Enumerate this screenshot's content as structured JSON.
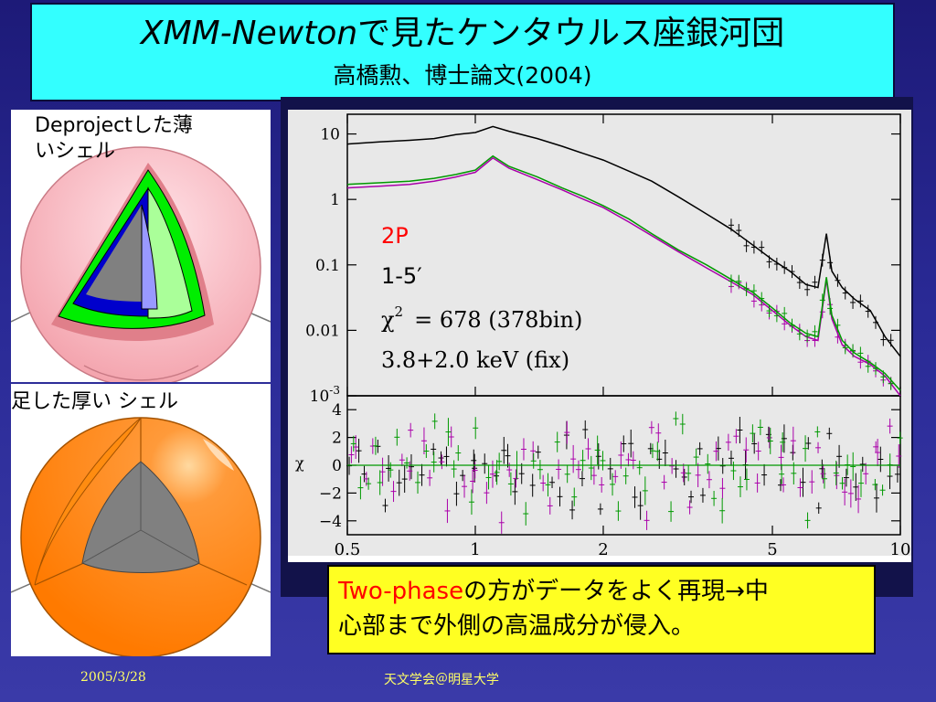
{
  "title": {
    "main_italic": "XMM-Newton",
    "main_rest": "で見たケンタウルス座銀河団",
    "subtitle": "高橋勲、博士論文(2004)"
  },
  "left_panels": {
    "thin_shell_label_line1": "Deprojectした薄",
    "thin_shell_label_line2": "いシェル",
    "thick_shell_label": "足した厚い シェル"
  },
  "plot": {
    "model_label": "2P",
    "region_label": "1-5′",
    "chi2_symbol": "χ",
    "chi2_exp": "2",
    "chi2_text": "= 678 (378bin)",
    "temps_label": "3.8+2.0 keV (fix)",
    "colors": {
      "data1": "#000000",
      "data2": "#aa00aa",
      "data3": "#009900",
      "model_label": "#ff0000"
    }
  },
  "chart_data": {
    "type": "line",
    "xscale": "log",
    "yscale_top": "log",
    "xlim": [
      0.5,
      10
    ],
    "ylim_top": [
      0.001,
      20
    ],
    "ylim_bottom": [
      -5,
      5
    ],
    "x_ticks": [
      "0.5",
      "1",
      "2",
      "5",
      "10"
    ],
    "y_ticks_top": [
      "10",
      "1",
      "0.1",
      "0.01",
      "10^-3"
    ],
    "y_ticks_bottom": [
      "4",
      "2",
      "0",
      "−2",
      "−4"
    ],
    "ylabel_bottom": "χ",
    "series": [
      {
        "color": "#000000",
        "x": [
          0.5,
          0.6,
          0.7,
          0.8,
          0.9,
          1.0,
          1.1,
          1.2,
          1.4,
          1.6,
          1.8,
          2.0,
          2.3,
          2.6,
          3.0,
          3.5,
          4.0,
          4.5,
          5.0,
          5.5,
          6.0,
          6.4,
          6.7,
          6.9,
          7.3,
          7.8,
          8.5,
          9.2,
          10.0
        ],
        "y": [
          7.0,
          7.6,
          8.0,
          8.5,
          9.8,
          10.5,
          13.0,
          11.0,
          8.5,
          6.5,
          5.0,
          4.0,
          2.7,
          1.9,
          1.1,
          0.6,
          0.35,
          0.2,
          0.12,
          0.08,
          0.05,
          0.045,
          0.3,
          0.08,
          0.045,
          0.03,
          0.02,
          0.008,
          0.004
        ]
      },
      {
        "color": "#aa00aa",
        "x": [
          0.5,
          0.6,
          0.7,
          0.8,
          0.9,
          1.0,
          1.1,
          1.2,
          1.4,
          1.6,
          1.8,
          2.0,
          2.3,
          2.6,
          3.0,
          3.5,
          4.0,
          4.5,
          5.0,
          5.5,
          6.0,
          6.4,
          6.7,
          6.9,
          7.3,
          7.8,
          8.5,
          9.2,
          10.0
        ],
        "y": [
          1.5,
          1.6,
          1.7,
          1.9,
          2.2,
          2.6,
          4.3,
          3.0,
          2.0,
          1.4,
          1.0,
          0.75,
          0.45,
          0.28,
          0.16,
          0.09,
          0.055,
          0.035,
          0.02,
          0.012,
          0.008,
          0.007,
          0.06,
          0.015,
          0.006,
          0.004,
          0.003,
          0.002,
          0.001
        ]
      },
      {
        "color": "#009900",
        "x": [
          0.5,
          0.6,
          0.7,
          0.8,
          0.9,
          1.0,
          1.1,
          1.2,
          1.4,
          1.6,
          1.8,
          2.0,
          2.3,
          2.6,
          3.0,
          3.5,
          4.0,
          4.5,
          5.0,
          5.5,
          6.0,
          6.4,
          6.7,
          6.9,
          7.3,
          7.8,
          8.5,
          9.2,
          10.0
        ],
        "y": [
          1.7,
          1.8,
          1.9,
          2.1,
          2.4,
          2.8,
          4.6,
          3.2,
          2.2,
          1.5,
          1.1,
          0.8,
          0.5,
          0.3,
          0.17,
          0.1,
          0.06,
          0.038,
          0.022,
          0.013,
          0.009,
          0.008,
          0.065,
          0.017,
          0.007,
          0.0045,
          0.0032,
          0.0022,
          0.0012
        ]
      }
    ]
  },
  "note": {
    "highlight": "Two-phase",
    "line1_rest": "の方がデータをよく再現→中",
    "line2": "心部まで外側の高温成分が侵入。"
  },
  "footer": {
    "date": "2005/3/28",
    "event": "天文学会＠明星大学"
  }
}
